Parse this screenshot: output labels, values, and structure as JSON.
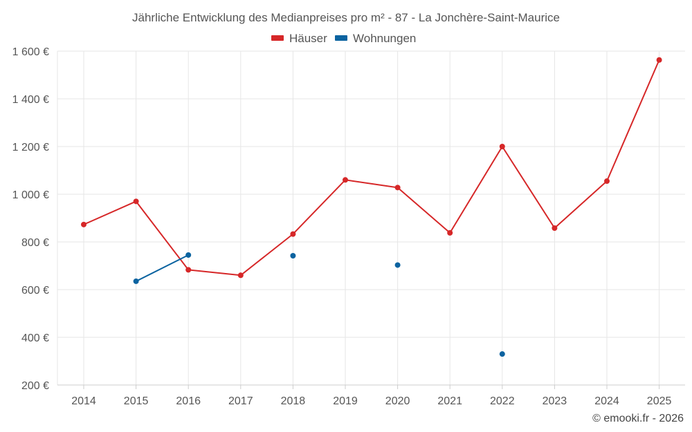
{
  "chart_data": {
    "type": "line",
    "title": "Jährliche Entwicklung des Medianpreises pro m² - 87 - La Jonchère-Saint-Maurice",
    "categories": [
      "2014",
      "2015",
      "2016",
      "2017",
      "2018",
      "2019",
      "2020",
      "2021",
      "2022",
      "2023",
      "2024",
      "2025"
    ],
    "ylim": [
      200,
      1650
    ],
    "yticks": [
      200,
      400,
      600,
      800,
      1000,
      1200,
      1400,
      1600
    ],
    "ytick_labels": [
      "200 €",
      "400 €",
      "600 €",
      "800 €",
      "1 000 €",
      "1 200 €",
      "1 400 €",
      "1 600 €"
    ],
    "xlabel": "",
    "ylabel": "",
    "legend": "top-center",
    "grid": true,
    "series": [
      {
        "name": "Häuser",
        "color": "#d62728",
        "values": [
          873,
          970,
          683,
          660,
          833,
          1060,
          1028,
          838,
          1200,
          858,
          1055,
          1563
        ]
      },
      {
        "name": "Wohnungen",
        "color": "#0b63a0",
        "values": [
          null,
          635,
          745,
          null,
          742,
          null,
          703,
          null,
          330,
          null,
          null,
          null
        ]
      }
    ],
    "credit": "© emooki.fr - 2026"
  }
}
